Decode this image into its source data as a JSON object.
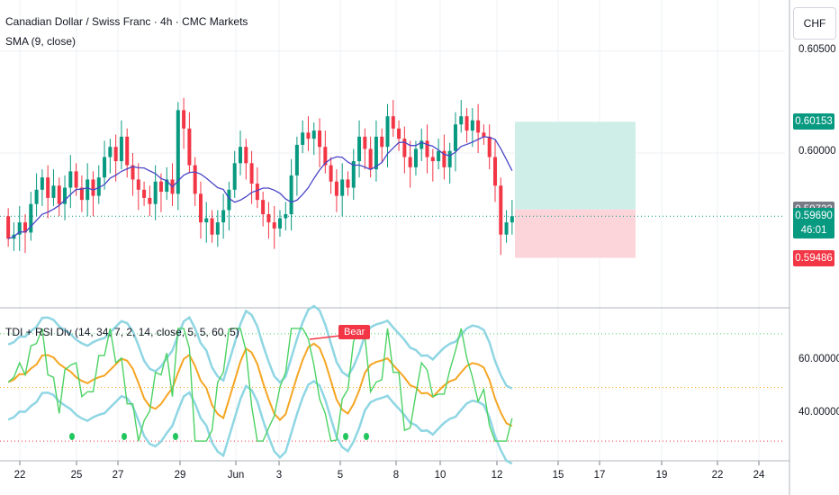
{
  "header": {
    "title": "Canadian Dollar / Swiss Franc · 4h · CMC Markets",
    "indicator": "SMA (9, close)",
    "sub_indicator": "TDI + RSI Div (14, 34, 7, 2, 14, close, 5, 5, 60, 5)"
  },
  "currency_button": "CHF",
  "colors": {
    "up": "#089981",
    "down": "#f23645",
    "sma": "#4a46c8",
    "profit_zone": "#cfeee8",
    "loss_zone": "#fbd5da",
    "bb_band": "#8fd6e3",
    "slow_line": "#f5a623",
    "rsi_line": "#4cd264"
  },
  "price_axis": {
    "ticks": [
      {
        "label": "0.60500",
        "v": 0.605
      },
      {
        "label": "0.60000",
        "v": 0.6
      }
    ],
    "labels": [
      {
        "label": "0.60153",
        "v": 0.60153,
        "color": "#089981"
      },
      {
        "label": "0.59723",
        "v": 0.59723,
        "color": "#787b86"
      },
      {
        "label": "0.59690",
        "v": 0.5969,
        "color": "#089981"
      },
      {
        "label": "46:01",
        "v": 0.5962,
        "color": "#089981"
      },
      {
        "label": "0.59486",
        "v": 0.59486,
        "color": "#f23645"
      }
    ]
  },
  "sub_axis": {
    "ticks": [
      {
        "label": "60.00000",
        "v": 60
      },
      {
        "label": "40.00000",
        "v": 40
      }
    ]
  },
  "x_ticks": [
    "22",
    "25",
    "27",
    "29",
    "Jun",
    "3",
    "5",
    "8",
    "10",
    "12",
    "15",
    "17",
    "19",
    "22",
    "24"
  ],
  "bear_label": "Bear",
  "chart_data": {
    "type": "candlestick",
    "symbol": "CADCHF",
    "timeframe": "4h",
    "ylim": [
      0.5925,
      0.6075
    ],
    "candles": [
      [
        0.5969,
        0.5958
      ],
      [
        0.5958,
        0.596
      ],
      [
        0.596,
        0.5966
      ],
      [
        0.5966,
        0.5961
      ],
      [
        0.5961,
        0.5975
      ],
      [
        0.5975,
        0.5982
      ],
      [
        0.5982,
        0.5988
      ],
      [
        0.5988,
        0.5978
      ],
      [
        0.5978,
        0.5984
      ],
      [
        0.5984,
        0.5975
      ],
      [
        0.5975,
        0.5983
      ],
      [
        0.5983,
        0.5991
      ],
      [
        0.5991,
        0.5983
      ],
      [
        0.5983,
        0.5977
      ],
      [
        0.5977,
        0.5987
      ],
      [
        0.5987,
        0.5979
      ],
      [
        0.5979,
        0.5988
      ],
      [
        0.5988,
        0.5998
      ],
      [
        0.5998,
        0.6003
      ],
      [
        0.6003,
        0.5996
      ],
      [
        0.5996,
        0.6008
      ],
      [
        0.6008,
        0.5994
      ],
      [
        0.5994,
        0.5987
      ],
      [
        0.5987,
        0.5982
      ],
      [
        0.5982,
        0.5978
      ],
      [
        0.5978,
        0.5975
      ],
      [
        0.5975,
        0.5986
      ],
      [
        0.5986,
        0.5981
      ],
      [
        0.5981,
        0.5987
      ],
      [
        0.5987,
        0.598
      ],
      [
        0.598,
        0.6021
      ],
      [
        0.6021,
        0.6012
      ],
      [
        0.6012,
        0.5994
      ],
      [
        0.5994,
        0.598
      ],
      [
        0.598,
        0.5966
      ],
      [
        0.5966,
        0.5968
      ],
      [
        0.5968,
        0.596
      ],
      [
        0.596,
        0.5966
      ],
      [
        0.5966,
        0.5972
      ],
      [
        0.5972,
        0.5982
      ],
      [
        0.5982,
        0.5995
      ],
      [
        0.5995,
        0.6003
      ],
      [
        0.6003,
        0.5995
      ],
      [
        0.5995,
        0.5985
      ],
      [
        0.5985,
        0.5977
      ],
      [
        0.5977,
        0.597
      ],
      [
        0.597,
        0.5966
      ],
      [
        0.5966,
        0.5963
      ],
      [
        0.5963,
        0.5968
      ],
      [
        0.5968,
        0.597
      ],
      [
        0.597,
        0.5989
      ],
      [
        0.5989,
        0.6004
      ],
      [
        0.6004,
        0.601
      ],
      [
        0.601,
        0.6007
      ],
      [
        0.6007,
        0.6011
      ],
      [
        0.6011,
        0.6003
      ],
      [
        0.6003,
        0.5994
      ],
      [
        0.5994,
        0.5986
      ],
      [
        0.5986,
        0.5979
      ],
      [
        0.5979,
        0.5987
      ],
      [
        0.5987,
        0.5983
      ],
      [
        0.5983,
        0.5996
      ],
      [
        0.5996,
        0.6008
      ],
      [
        0.6008,
        0.6002
      ],
      [
        0.6002,
        0.5992
      ],
      [
        0.5992,
        0.6008
      ],
      [
        0.6008,
        0.6003
      ],
      [
        0.6003,
        0.6018
      ],
      [
        0.6018,
        0.6012
      ],
      [
        0.6012,
        0.6007
      ],
      [
        0.6007,
        0.5998
      ],
      [
        0.5998,
        0.5993
      ],
      [
        0.5993,
        0.6002
      ],
      [
        0.6002,
        0.6006
      ],
      [
        0.6006,
        0.5998
      ],
      [
        0.5998,
        0.5996
      ],
      [
        0.5996,
        0.6001
      ],
      [
        0.6001,
        0.5993
      ],
      [
        0.5993,
        0.6001
      ],
      [
        0.6001,
        0.6014
      ],
      [
        0.6014,
        0.6018
      ],
      [
        0.6018,
        0.6011
      ],
      [
        0.6011,
        0.6016
      ],
      [
        0.6016,
        0.601
      ],
      [
        0.601,
        0.6008
      ],
      [
        0.6008,
        0.5998
      ],
      [
        0.5998,
        0.5984
      ],
      [
        0.5984,
        0.596
      ],
      [
        0.596,
        0.5966
      ],
      [
        0.5966,
        0.5969
      ]
    ]
  }
}
